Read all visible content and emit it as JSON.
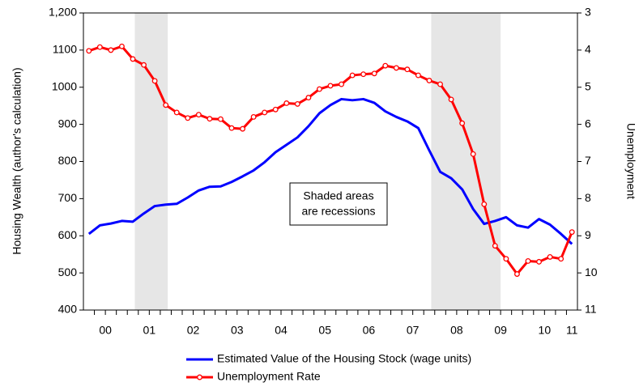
{
  "chart_data": {
    "type": "line",
    "y_label": "Housing Wealth (author's calculation)",
    "y2_label": "Unemployment",
    "annotation": [
      "Shaded areas",
      "are recessions"
    ],
    "x": [
      2000.125,
      2000.375,
      2000.625,
      2000.875,
      2001.125,
      2001.375,
      2001.625,
      2001.875,
      2002.125,
      2002.375,
      2002.625,
      2002.875,
      2003.125,
      2003.375,
      2003.625,
      2003.875,
      2004.125,
      2004.375,
      2004.625,
      2004.875,
      2005.125,
      2005.375,
      2005.625,
      2005.875,
      2006.125,
      2006.375,
      2006.625,
      2006.875,
      2007.125,
      2007.375,
      2007.625,
      2007.875,
      2008.125,
      2008.375,
      2008.625,
      2008.875,
      2009.125,
      2009.375,
      2009.625,
      2009.875,
      2010.125,
      2010.375,
      2010.625,
      2010.875,
      2011.125
    ],
    "series": [
      {
        "name": "Estimated Value of the Housing Stock (wage units)",
        "color": "#0000ff",
        "axis": "y",
        "markers": false,
        "values": [
          605,
          628,
          633,
          640,
          638,
          660,
          680,
          684,
          686,
          703,
          722,
          732,
          733,
          745,
          760,
          776,
          798,
          825,
          845,
          865,
          895,
          930,
          952,
          968,
          965,
          968,
          958,
          935,
          920,
          908,
          890,
          830,
          772,
          755,
          725,
          672,
          632,
          640,
          650,
          628,
          622,
          645,
          630,
          605,
          578
        ]
      },
      {
        "name": "Unemployment Rate",
        "color": "#ff0000",
        "axis": "y2",
        "markers": true,
        "values": [
          4.02,
          3.92,
          4.0,
          3.9,
          4.24,
          4.4,
          4.83,
          5.48,
          5.68,
          5.83,
          5.74,
          5.85,
          5.86,
          6.1,
          6.12,
          5.8,
          5.68,
          5.6,
          5.43,
          5.45,
          5.28,
          5.05,
          4.96,
          4.92,
          4.68,
          4.65,
          4.63,
          4.42,
          4.48,
          4.52,
          4.68,
          4.82,
          4.92,
          5.33,
          5.97,
          6.8,
          8.15,
          9.27,
          9.62,
          10.03,
          9.68,
          9.7,
          9.57,
          9.62,
          8.9
        ]
      }
    ],
    "shaded": [
      [
        2001.17,
        2001.92
      ],
      [
        2007.92,
        2009.5
      ]
    ],
    "shade_color": "#e6e6e6",
    "xlim": [
      2000,
      2011.25
    ],
    "xticks": [
      {
        "value": 2000.5,
        "label": "00"
      },
      {
        "value": 2001.5,
        "label": "01"
      },
      {
        "value": 2002.5,
        "label": "02"
      },
      {
        "value": 2003.5,
        "label": "03"
      },
      {
        "value": 2004.5,
        "label": "04"
      },
      {
        "value": 2005.5,
        "label": "05"
      },
      {
        "value": 2006.5,
        "label": "06"
      },
      {
        "value": 2007.5,
        "label": "07"
      },
      {
        "value": 2008.5,
        "label": "08"
      },
      {
        "value": 2009.5,
        "label": "09"
      },
      {
        "value": 2010.5,
        "label": "10"
      },
      {
        "value": 2011.125,
        "label": "11"
      }
    ],
    "xminorticks": [
      2000.25,
      2000.5,
      2000.75,
      2001,
      2001.25,
      2001.5,
      2001.75,
      2002,
      2002.25,
      2002.5,
      2002.75,
      2003,
      2003.25,
      2003.5,
      2003.75,
      2004,
      2004.25,
      2004.5,
      2004.75,
      2005,
      2005.25,
      2005.5,
      2005.75,
      2006,
      2006.25,
      2006.5,
      2006.75,
      2007,
      2007.25,
      2007.5,
      2007.75,
      2008,
      2008.25,
      2008.5,
      2008.75,
      2009,
      2009.25,
      2009.5,
      2009.75,
      2010,
      2010.25,
      2010.5,
      2010.75,
      2011
    ],
    "ylim": [
      400,
      1200
    ],
    "yticks": [
      400,
      500,
      600,
      700,
      800,
      900,
      1000,
      1100,
      {
        "value": 1200,
        "label": "1,200"
      }
    ],
    "y2lim": [
      11,
      3
    ],
    "y2ticks": [
      3,
      4,
      5,
      6,
      7,
      8,
      9,
      10,
      11
    ],
    "legend": "bottom"
  }
}
